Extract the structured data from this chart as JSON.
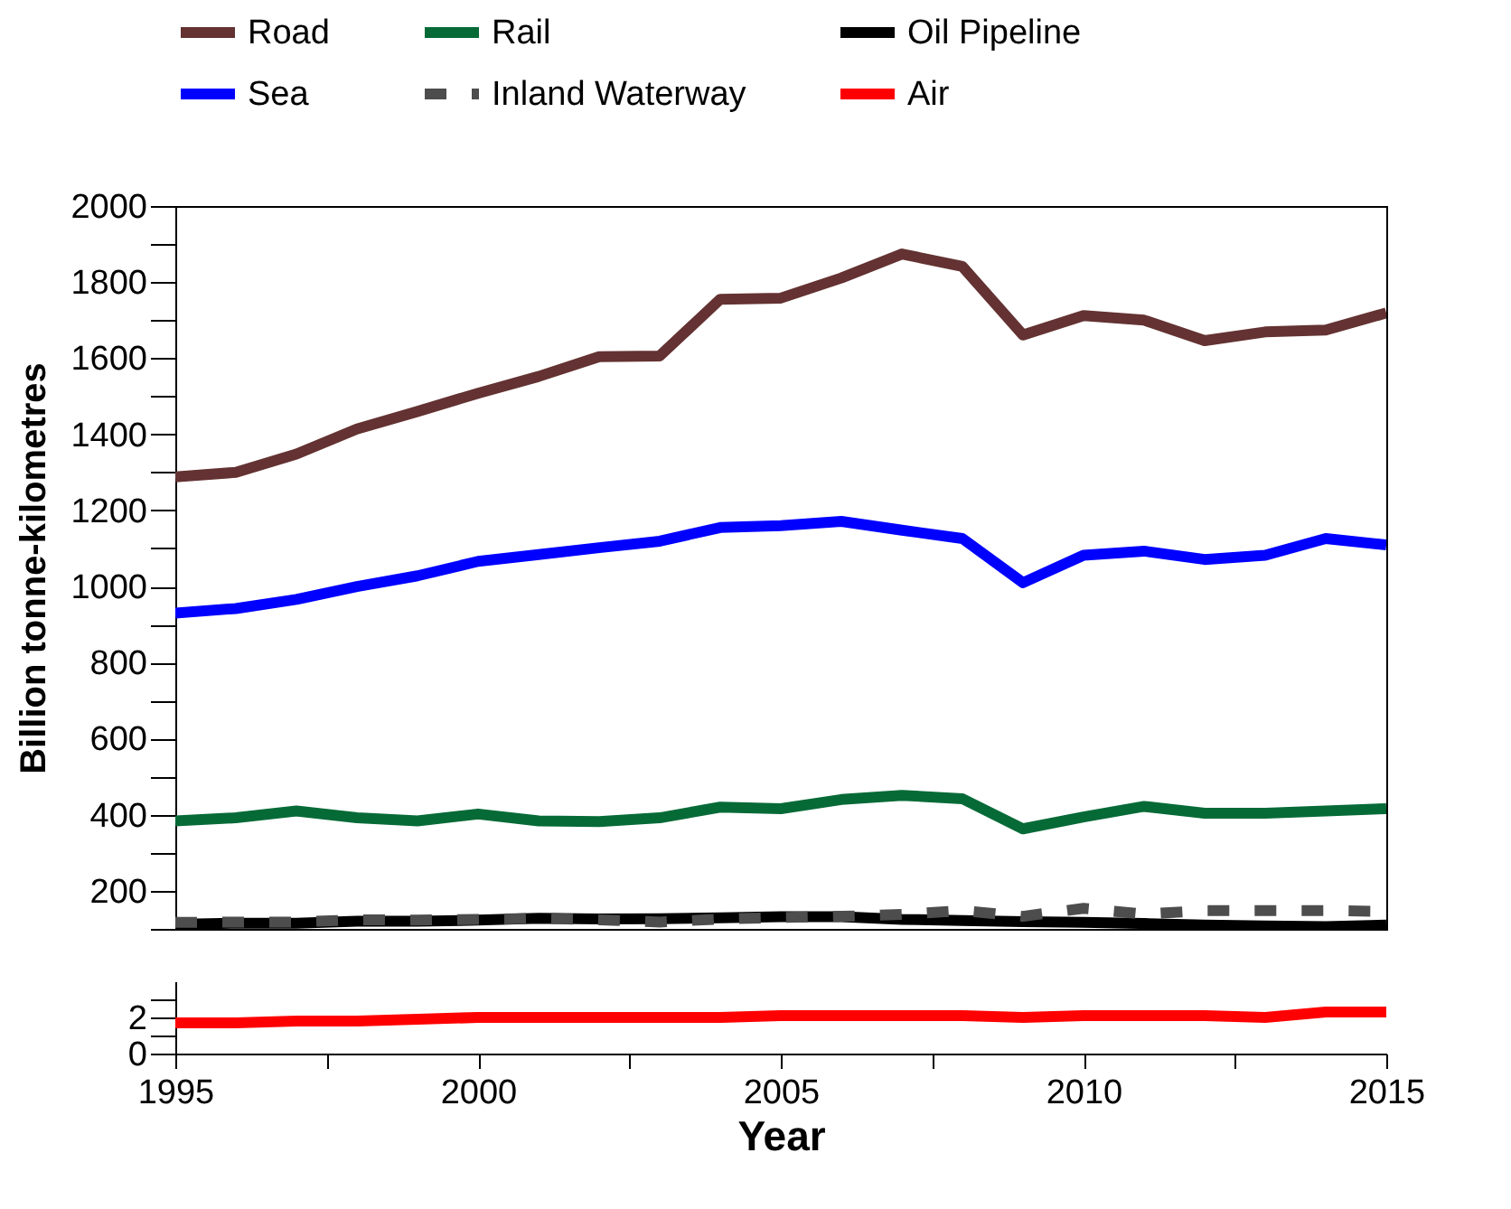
{
  "chart_data": [
    {
      "type": "line",
      "ylabel": "Billion tonne-kilometres",
      "legend": "top",
      "tick_labels": "y",
      "line_style": "solid",
      "x": [
        1995,
        1996,
        1997,
        1998,
        1999,
        2000,
        2001,
        2002,
        2003,
        2004,
        2005,
        2006,
        2007,
        2008,
        2009,
        2010,
        2011,
        2012,
        2013,
        2014,
        2015
      ],
      "xlim": [
        1995,
        2015
      ],
      "ylim": [
        100,
        2000
      ],
      "yticks": [
        {
          "value": 100,
          "label": null
        },
        200,
        {
          "value": 300,
          "label": null
        },
        400,
        {
          "value": 500,
          "label": null
        },
        600,
        {
          "value": 700,
          "label": null
        },
        800,
        {
          "value": 900,
          "label": null
        },
        1000,
        {
          "value": 1100,
          "label": null
        },
        1200,
        {
          "value": 1300,
          "label": null
        },
        1400,
        {
          "value": 1500,
          "label": null
        },
        1600,
        {
          "value": 1700,
          "label": null
        },
        1800,
        {
          "value": 1900,
          "label": null
        },
        2000
      ],
      "series": [
        {
          "name": "Road",
          "color": "#643232",
          "values": [
            1288,
            1300,
            1348,
            1414,
            1460,
            1508,
            1552,
            1604,
            1606,
            1755,
            1758,
            1811,
            1874,
            1841,
            1661,
            1712,
            1700,
            1646,
            1669,
            1674,
            1719
          ]
        },
        {
          "name": "Rail",
          "color": "#066a37",
          "values": [
            384,
            392,
            410,
            392,
            384,
            402,
            384,
            382,
            392,
            420,
            416,
            440,
            451,
            442,
            363,
            394,
            422,
            404,
            404,
            410,
            416
          ]
        },
        {
          "name": "Oil Pipeline",
          "color": "#000000",
          "values": [
            112,
            115,
            115,
            120,
            120,
            123,
            128,
            126,
            127,
            129,
            132,
            132,
            125,
            122,
            119,
            117,
            114,
            110,
            108,
            106,
            110
          ]
        },
        {
          "name": "Sea",
          "color": "#0000ff",
          "values": [
            930,
            942,
            966,
            1000,
            1028,
            1066,
            1084,
            1102,
            1119,
            1155,
            1160,
            1171,
            1148,
            1126,
            1010,
            1082,
            1093,
            1071,
            1082,
            1126,
            1109
          ]
        },
        {
          "name": "Inland Waterway",
          "color": "#4d4d4d",
          "line_style": "dashed",
          "values": [
            117,
            118,
            118,
            124,
            123,
            125,
            128,
            124,
            118,
            126,
            130,
            133,
            138,
            148,
            133,
            154,
            139,
            148,
            148,
            148,
            146
          ]
        }
      ]
    },
    {
      "type": "line",
      "xlabel": "Year",
      "legend": "top",
      "line_style": "solid",
      "x": [
        1995,
        1996,
        1997,
        1998,
        1999,
        2000,
        2001,
        2002,
        2003,
        2004,
        2005,
        2006,
        2007,
        2008,
        2009,
        2010,
        2011,
        2012,
        2013,
        2014,
        2015
      ],
      "xlim": [
        1995,
        2015
      ],
      "xticks": [
        1995,
        {
          "value": 1997.5,
          "label": null
        },
        2000,
        {
          "value": 2002.5,
          "label": null
        },
        2005,
        {
          "value": 2007.5,
          "label": null
        },
        2010,
        {
          "value": 2012.5,
          "label": null
        },
        2015
      ],
      "ylim": [
        0,
        4
      ],
      "yticks": [
        0,
        {
          "value": 1,
          "label": null
        },
        2,
        {
          "value": 3,
          "label": null
        }
      ],
      "series": [
        {
          "name": "Air",
          "color": "#ff0000",
          "values": [
            1.7,
            1.7,
            1.8,
            1.8,
            1.9,
            2.0,
            2.0,
            2.0,
            2.0,
            2.0,
            2.1,
            2.1,
            2.1,
            2.1,
            2.0,
            2.1,
            2.1,
            2.1,
            2.0,
            2.3,
            2.3
          ]
        }
      ]
    }
  ]
}
